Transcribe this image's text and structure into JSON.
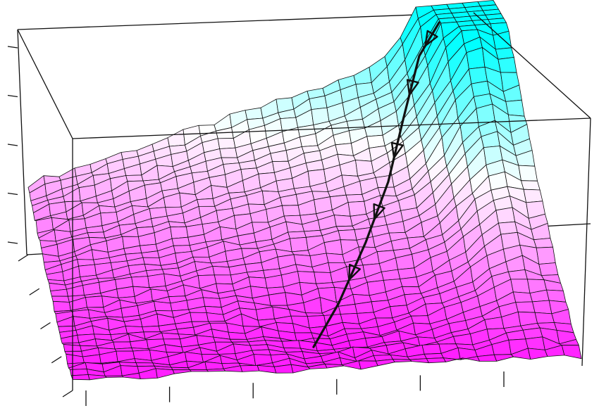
{
  "chart_data": {
    "type": "surface",
    "title": "",
    "xlabel": "",
    "ylabel": "",
    "zlabel": "",
    "grid": false,
    "colors": {
      "low": "#ff00ff",
      "mid": "#ffffff",
      "high": "#00ffff",
      "mesh": "#111111",
      "box": "#111111"
    },
    "surface": {
      "nx": 30,
      "ny": 34,
      "description_free": true
    },
    "optimization_path": {
      "points": [
        {
          "x": 0.88,
          "y": 0.02,
          "z": 0.98
        },
        {
          "x": 0.82,
          "y": 0.12,
          "z": 0.9
        },
        {
          "x": 0.76,
          "y": 0.28,
          "z": 0.72
        },
        {
          "x": 0.7,
          "y": 0.46,
          "z": 0.55
        },
        {
          "x": 0.63,
          "y": 0.62,
          "z": 0.38
        },
        {
          "x": 0.55,
          "y": 0.8,
          "z": 0.22
        },
        {
          "x": 0.48,
          "y": 0.95,
          "z": 0.12
        }
      ],
      "arrows": 5
    },
    "axis_ticks": {
      "left_vertical": 5,
      "left_diagonal": 5,
      "bottom": 6
    }
  }
}
